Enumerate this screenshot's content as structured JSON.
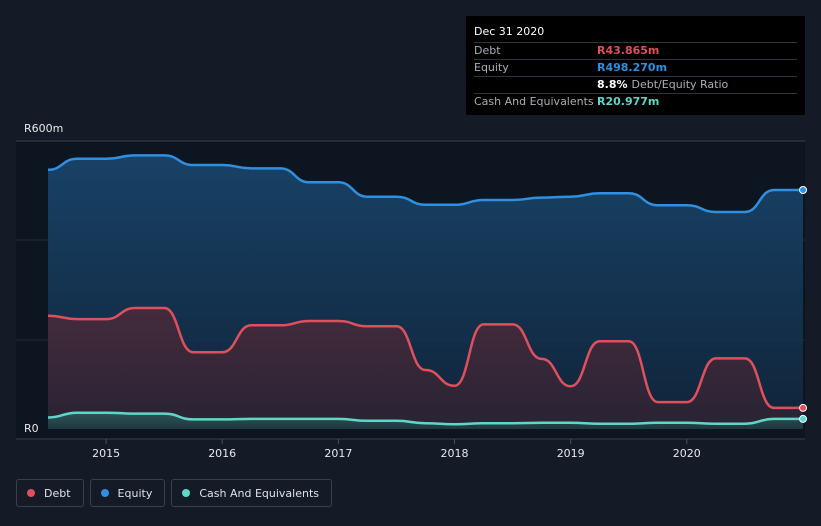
{
  "tooltip": {
    "date": "Dec 31 2020",
    "rows": [
      {
        "name": "Debt",
        "value": "R43.865m",
        "color": "#e0505c"
      },
      {
        "name": "Equity",
        "value": "R498.270m",
        "color": "#2f8fe0"
      },
      {
        "name": "",
        "value": "8.8%",
        "unit": "Debt/Equity Ratio",
        "color": "#ffffff"
      },
      {
        "name": "Cash And Equivalents",
        "value": "R20.977m",
        "color": "#5fd6c8"
      }
    ]
  },
  "legend": [
    {
      "label": "Debt",
      "color": "#e0505c"
    },
    {
      "label": "Equity",
      "color": "#2f8fe0"
    },
    {
      "label": "Cash And Equivalents",
      "color": "#5fd6c8"
    }
  ],
  "chart_data": {
    "type": "area",
    "ylim": [
      0,
      600
    ],
    "y_ticks": [
      {
        "value": 600,
        "label": "R600m"
      },
      {
        "value": 0,
        "label": "R0"
      }
    ],
    "x_ticks": [
      {
        "value": 2015,
        "label": "2015"
      },
      {
        "value": 2016,
        "label": "2016"
      },
      {
        "value": 2017,
        "label": "2017"
      },
      {
        "value": 2018,
        "label": "2018"
      },
      {
        "value": 2019,
        "label": "2019"
      },
      {
        "value": 2020,
        "label": "2020"
      }
    ],
    "xlim": [
      2014.5,
      2021.0
    ],
    "series": [
      {
        "name": "Equity",
        "color": "#2f8fe0",
        "points": [
          [
            2014.5,
            540
          ],
          [
            2014.75,
            563
          ],
          [
            2015.0,
            563
          ],
          [
            2015.25,
            570
          ],
          [
            2015.5,
            570
          ],
          [
            2015.75,
            550
          ],
          [
            2016.0,
            550
          ],
          [
            2016.25,
            543
          ],
          [
            2016.5,
            543
          ],
          [
            2016.75,
            514
          ],
          [
            2017.0,
            514
          ],
          [
            2017.25,
            484
          ],
          [
            2017.5,
            484
          ],
          [
            2017.75,
            467
          ],
          [
            2018.0,
            467
          ],
          [
            2018.25,
            477
          ],
          [
            2018.5,
            477
          ],
          [
            2018.75,
            482
          ],
          [
            2019.0,
            484
          ],
          [
            2019.25,
            491
          ],
          [
            2019.5,
            491
          ],
          [
            2019.75,
            466
          ],
          [
            2020.0,
            466
          ],
          [
            2020.25,
            452
          ],
          [
            2020.5,
            452
          ],
          [
            2020.75,
            498
          ],
          [
            2021.0,
            498
          ]
        ]
      },
      {
        "name": "Debt",
        "color": "#e0505c",
        "points": [
          [
            2014.5,
            236
          ],
          [
            2014.75,
            229
          ],
          [
            2015.0,
            229
          ],
          [
            2015.25,
            252
          ],
          [
            2015.5,
            252
          ],
          [
            2015.75,
            160
          ],
          [
            2016.0,
            160
          ],
          [
            2016.25,
            216
          ],
          [
            2016.5,
            216
          ],
          [
            2016.75,
            225
          ],
          [
            2017.0,
            225
          ],
          [
            2017.25,
            214
          ],
          [
            2017.5,
            214
          ],
          [
            2017.75,
            123
          ],
          [
            2018.0,
            90
          ],
          [
            2018.25,
            218
          ],
          [
            2018.5,
            218
          ],
          [
            2018.75,
            146
          ],
          [
            2019.0,
            89
          ],
          [
            2019.25,
            183
          ],
          [
            2019.5,
            183
          ],
          [
            2019.75,
            56
          ],
          [
            2020.0,
            56
          ],
          [
            2020.25,
            147
          ],
          [
            2020.5,
            147
          ],
          [
            2020.75,
            44
          ],
          [
            2021.0,
            44
          ]
        ]
      },
      {
        "name": "Cash And Equivalents",
        "color": "#5fd6c8",
        "points": [
          [
            2014.5,
            24
          ],
          [
            2014.75,
            34
          ],
          [
            2015.0,
            34
          ],
          [
            2015.25,
            32
          ],
          [
            2015.5,
            32
          ],
          [
            2015.75,
            20
          ],
          [
            2016.0,
            20
          ],
          [
            2016.25,
            21
          ],
          [
            2016.5,
            21
          ],
          [
            2016.75,
            21
          ],
          [
            2017.0,
            21
          ],
          [
            2017.25,
            17
          ],
          [
            2017.5,
            17
          ],
          [
            2017.75,
            12
          ],
          [
            2018.0,
            10
          ],
          [
            2018.25,
            12
          ],
          [
            2018.5,
            12
          ],
          [
            2018.75,
            13
          ],
          [
            2019.0,
            13
          ],
          [
            2019.25,
            11
          ],
          [
            2019.5,
            11
          ],
          [
            2019.75,
            13
          ],
          [
            2020.0,
            13
          ],
          [
            2020.25,
            11
          ],
          [
            2020.5,
            11
          ],
          [
            2020.75,
            21
          ],
          [
            2021.0,
            21
          ]
        ]
      }
    ]
  }
}
